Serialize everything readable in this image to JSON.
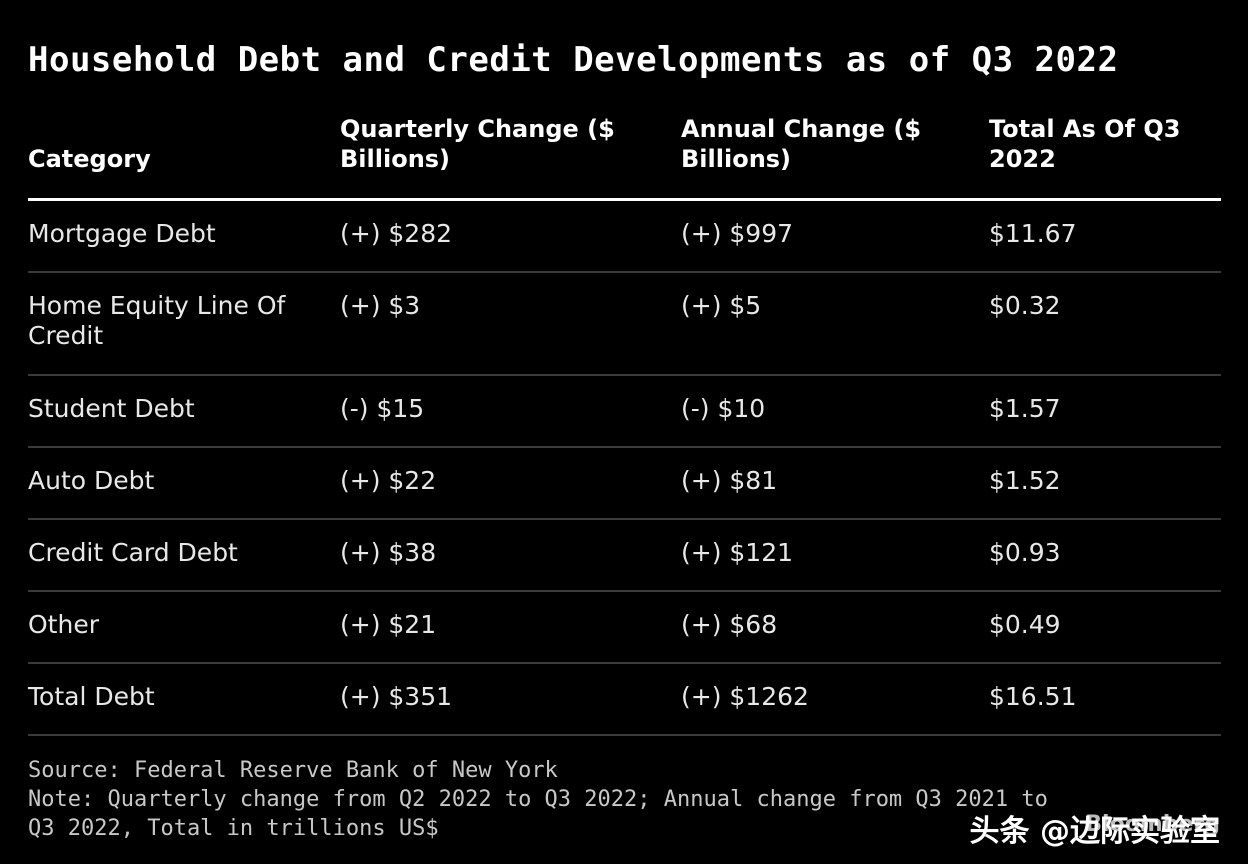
{
  "chart_data": {
    "type": "table",
    "title": "Household Debt and Credit Developments as of Q3 2022",
    "columns": [
      "Category",
      "Quarterly Change ($ Billions)",
      "Annual Change ($ Billions)",
      "Total As Of Q3 2022"
    ],
    "rows": [
      [
        "Mortgage Debt",
        "(+) $282",
        "(+) $997",
        "$11.67"
      ],
      [
        "Home Equity Line Of Credit",
        "(+) $3",
        "(+) $5",
        "$0.32"
      ],
      [
        "Student Debt",
        "(-) $15",
        "(-) $10",
        "$1.57"
      ],
      [
        "Auto Debt",
        "(+) $22",
        "(+) $81",
        "$1.52"
      ],
      [
        "Credit Card Debt",
        "(+) $38",
        "(+) $121",
        "$0.93"
      ],
      [
        "Other",
        "(+) $21",
        "(+) $68",
        "$0.49"
      ],
      [
        "Total Debt",
        "(+) $351",
        "(+) $1262",
        "$16.51"
      ]
    ],
    "source": "Source: Federal Reserve Bank of New York",
    "note_line1": "Note: Quarterly change from Q2 2022 to Q3 2022; Annual change from Q3 2021 to",
    "note_line2": "Q3 2022, Total in trillions US$"
  },
  "brand": "Bloomberg",
  "watermark": "头条 @边际实验室",
  "colors": {
    "background": "#000000",
    "text": "#ffffff",
    "row_divider": "#3a3a3a"
  }
}
